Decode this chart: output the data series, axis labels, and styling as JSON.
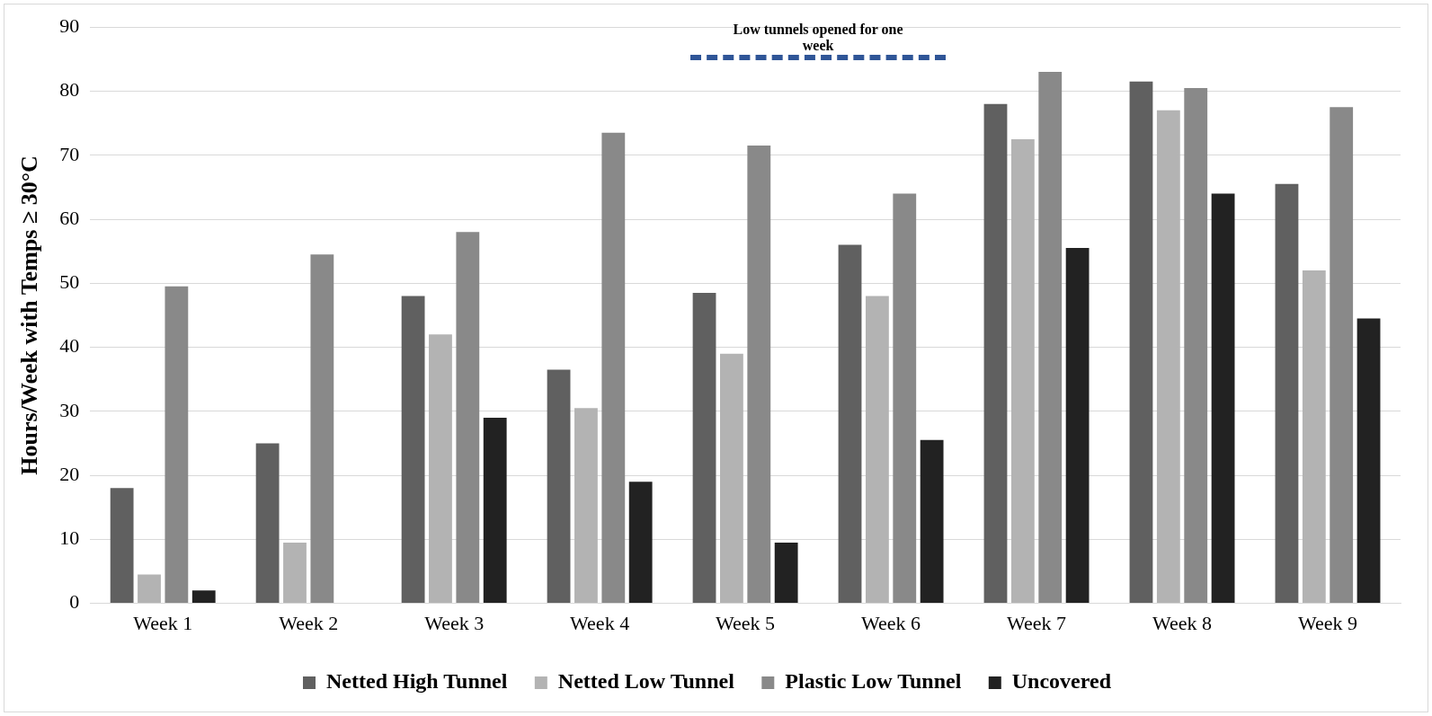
{
  "chart_data": {
    "type": "bar",
    "ylabel": "Hours/Week with Temps ≥ 30°C",
    "categories": [
      "Week 1",
      "Week 2",
      "Week 3",
      "Week 4",
      "Week 5",
      "Week 6",
      "Week 7",
      "Week 8",
      "Week 9"
    ],
    "series": [
      {
        "name": "Netted High Tunnel",
        "color": "#606060",
        "values": [
          18,
          25,
          48,
          36.5,
          48.5,
          56,
          78,
          81.5,
          65.5
        ]
      },
      {
        "name": "Netted Low Tunnel",
        "color": "#b3b3b3",
        "values": [
          4.5,
          9.5,
          42,
          30.5,
          39,
          48,
          72.5,
          77,
          52
        ]
      },
      {
        "name": "Plastic Low Tunnel",
        "color": "#898989",
        "values": [
          49.5,
          54.5,
          58,
          73.5,
          71.5,
          64,
          83,
          80.5,
          77.5
        ]
      },
      {
        "name": "Uncovered",
        "color": "#222222",
        "values": [
          2,
          0,
          29,
          19,
          9.5,
          25.5,
          55.5,
          64,
          44.5
        ]
      }
    ],
    "ylim": [
      0,
      90
    ],
    "yticks": [
      0,
      10,
      20,
      30,
      40,
      50,
      60,
      70,
      80,
      90
    ],
    "grid": "y",
    "legend": "bottom",
    "annotations": [
      "Low tunnels opened for one week"
    ]
  }
}
